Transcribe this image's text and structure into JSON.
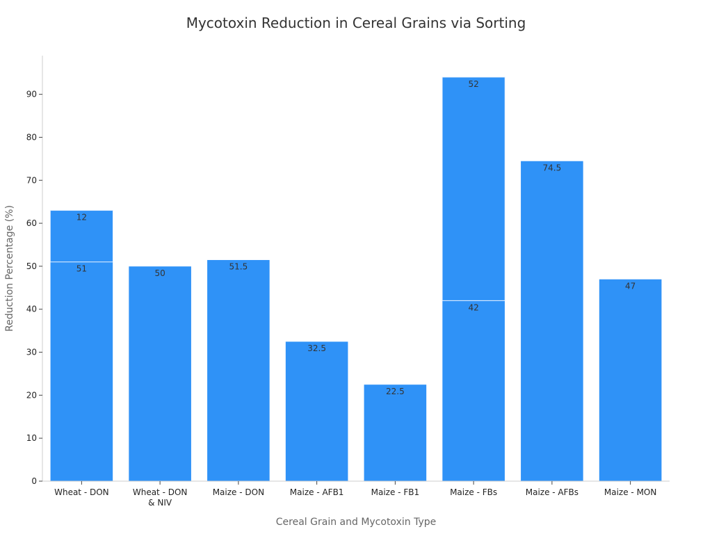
{
  "chart_data": {
    "type": "bar",
    "title": "Mycotoxin Reduction in Cereal Grains via Sorting",
    "xlabel": "Cereal Grain and Mycotoxin Type",
    "ylabel": "Reduction Percentage (%)",
    "ylim": [
      0,
      99
    ],
    "yticks": [
      0,
      10,
      20,
      30,
      40,
      50,
      60,
      70,
      80,
      90
    ],
    "grid": false,
    "color": "#2f92f7",
    "categories": [
      [
        "Wheat - DON"
      ],
      [
        "Wheat - DON",
        "& NIV"
      ],
      [
        "Maize - DON"
      ],
      [
        "Maize - AFB1"
      ],
      [
        "Maize - FB1"
      ],
      [
        "Maize - FBs"
      ],
      [
        "Maize - AFBs"
      ],
      [
        "Maize - MON"
      ]
    ],
    "bars": [
      {
        "segments": [
          51,
          12
        ]
      },
      {
        "segments": [
          50
        ]
      },
      {
        "segments": [
          51.5
        ]
      },
      {
        "segments": [
          32.5
        ]
      },
      {
        "segments": [
          22.5
        ]
      },
      {
        "segments": [
          42,
          52
        ]
      },
      {
        "segments": [
          74.5
        ]
      },
      {
        "segments": [
          47
        ]
      }
    ],
    "data_labels": [
      [
        "51",
        "12"
      ],
      [
        "50"
      ],
      [
        "51.5"
      ],
      [
        "32.5"
      ],
      [
        "22.5"
      ],
      [
        "42",
        "52"
      ],
      [
        "74.5"
      ],
      [
        "47"
      ]
    ]
  }
}
